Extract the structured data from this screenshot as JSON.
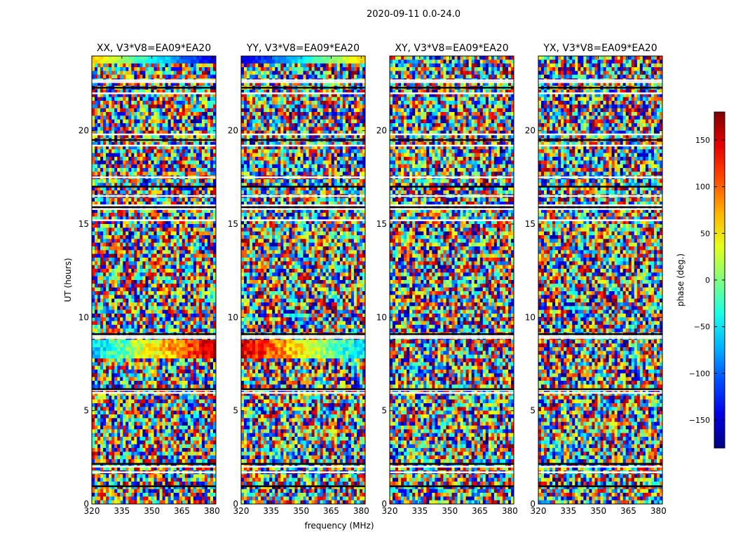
{
  "figure": {
    "suptitle": "2020-09-11 0.0-24.0",
    "xlabel": "frequency (MHz)",
    "ylabel": "UT (hours)",
    "colorbar_label": "phase (deg.)"
  },
  "chart_data": {
    "type": "heatmap",
    "colormap": "jet",
    "xlim": [
      320,
      382
    ],
    "ylim": [
      0,
      24
    ],
    "x_ticks": [
      320,
      335,
      350,
      365,
      380
    ],
    "y_ticks": [
      0,
      5,
      10,
      15,
      20
    ],
    "colorbar": {
      "range": [
        -180,
        180
      ],
      "ticks": [
        150,
        100,
        50,
        0,
        -50,
        -100,
        -150
      ],
      "tick_labels": [
        "150",
        "100",
        "50",
        "0",
        "−50",
        "−100",
        "−150"
      ]
    },
    "flagged_rows_ut_hours": [
      0.95,
      1.7,
      2.0,
      2.15,
      5.95,
      6.1,
      6.15,
      8.9,
      9.0,
      9.1,
      15.2,
      15.8,
      15.9,
      16.0,
      16.5,
      17.0,
      17.5,
      19.2,
      19.5,
      19.8,
      22.0,
      22.3,
      22.6,
      22.7
    ],
    "panels": [
      {
        "title": "XX, V3*V8=EA09*EA20",
        "coherent_band_ut": [
          7.8,
          8.8
        ],
        "band_phase_low_freq": -60,
        "band_phase_high_freq": 150,
        "top_row_phase_low_freq": 60,
        "top_row_phase_high_freq": -150
      },
      {
        "title": "YY, V3*V8=EA09*EA20",
        "coherent_band_ut": [
          7.8,
          8.8
        ],
        "band_phase_low_freq": 150,
        "band_phase_high_freq": -60,
        "top_row_phase_low_freq": -150,
        "top_row_phase_high_freq": 60
      },
      {
        "title": "XY, V3*V8=EA09*EA20"
      },
      {
        "title": "YX, V3*V8=EA09*EA20"
      }
    ]
  }
}
